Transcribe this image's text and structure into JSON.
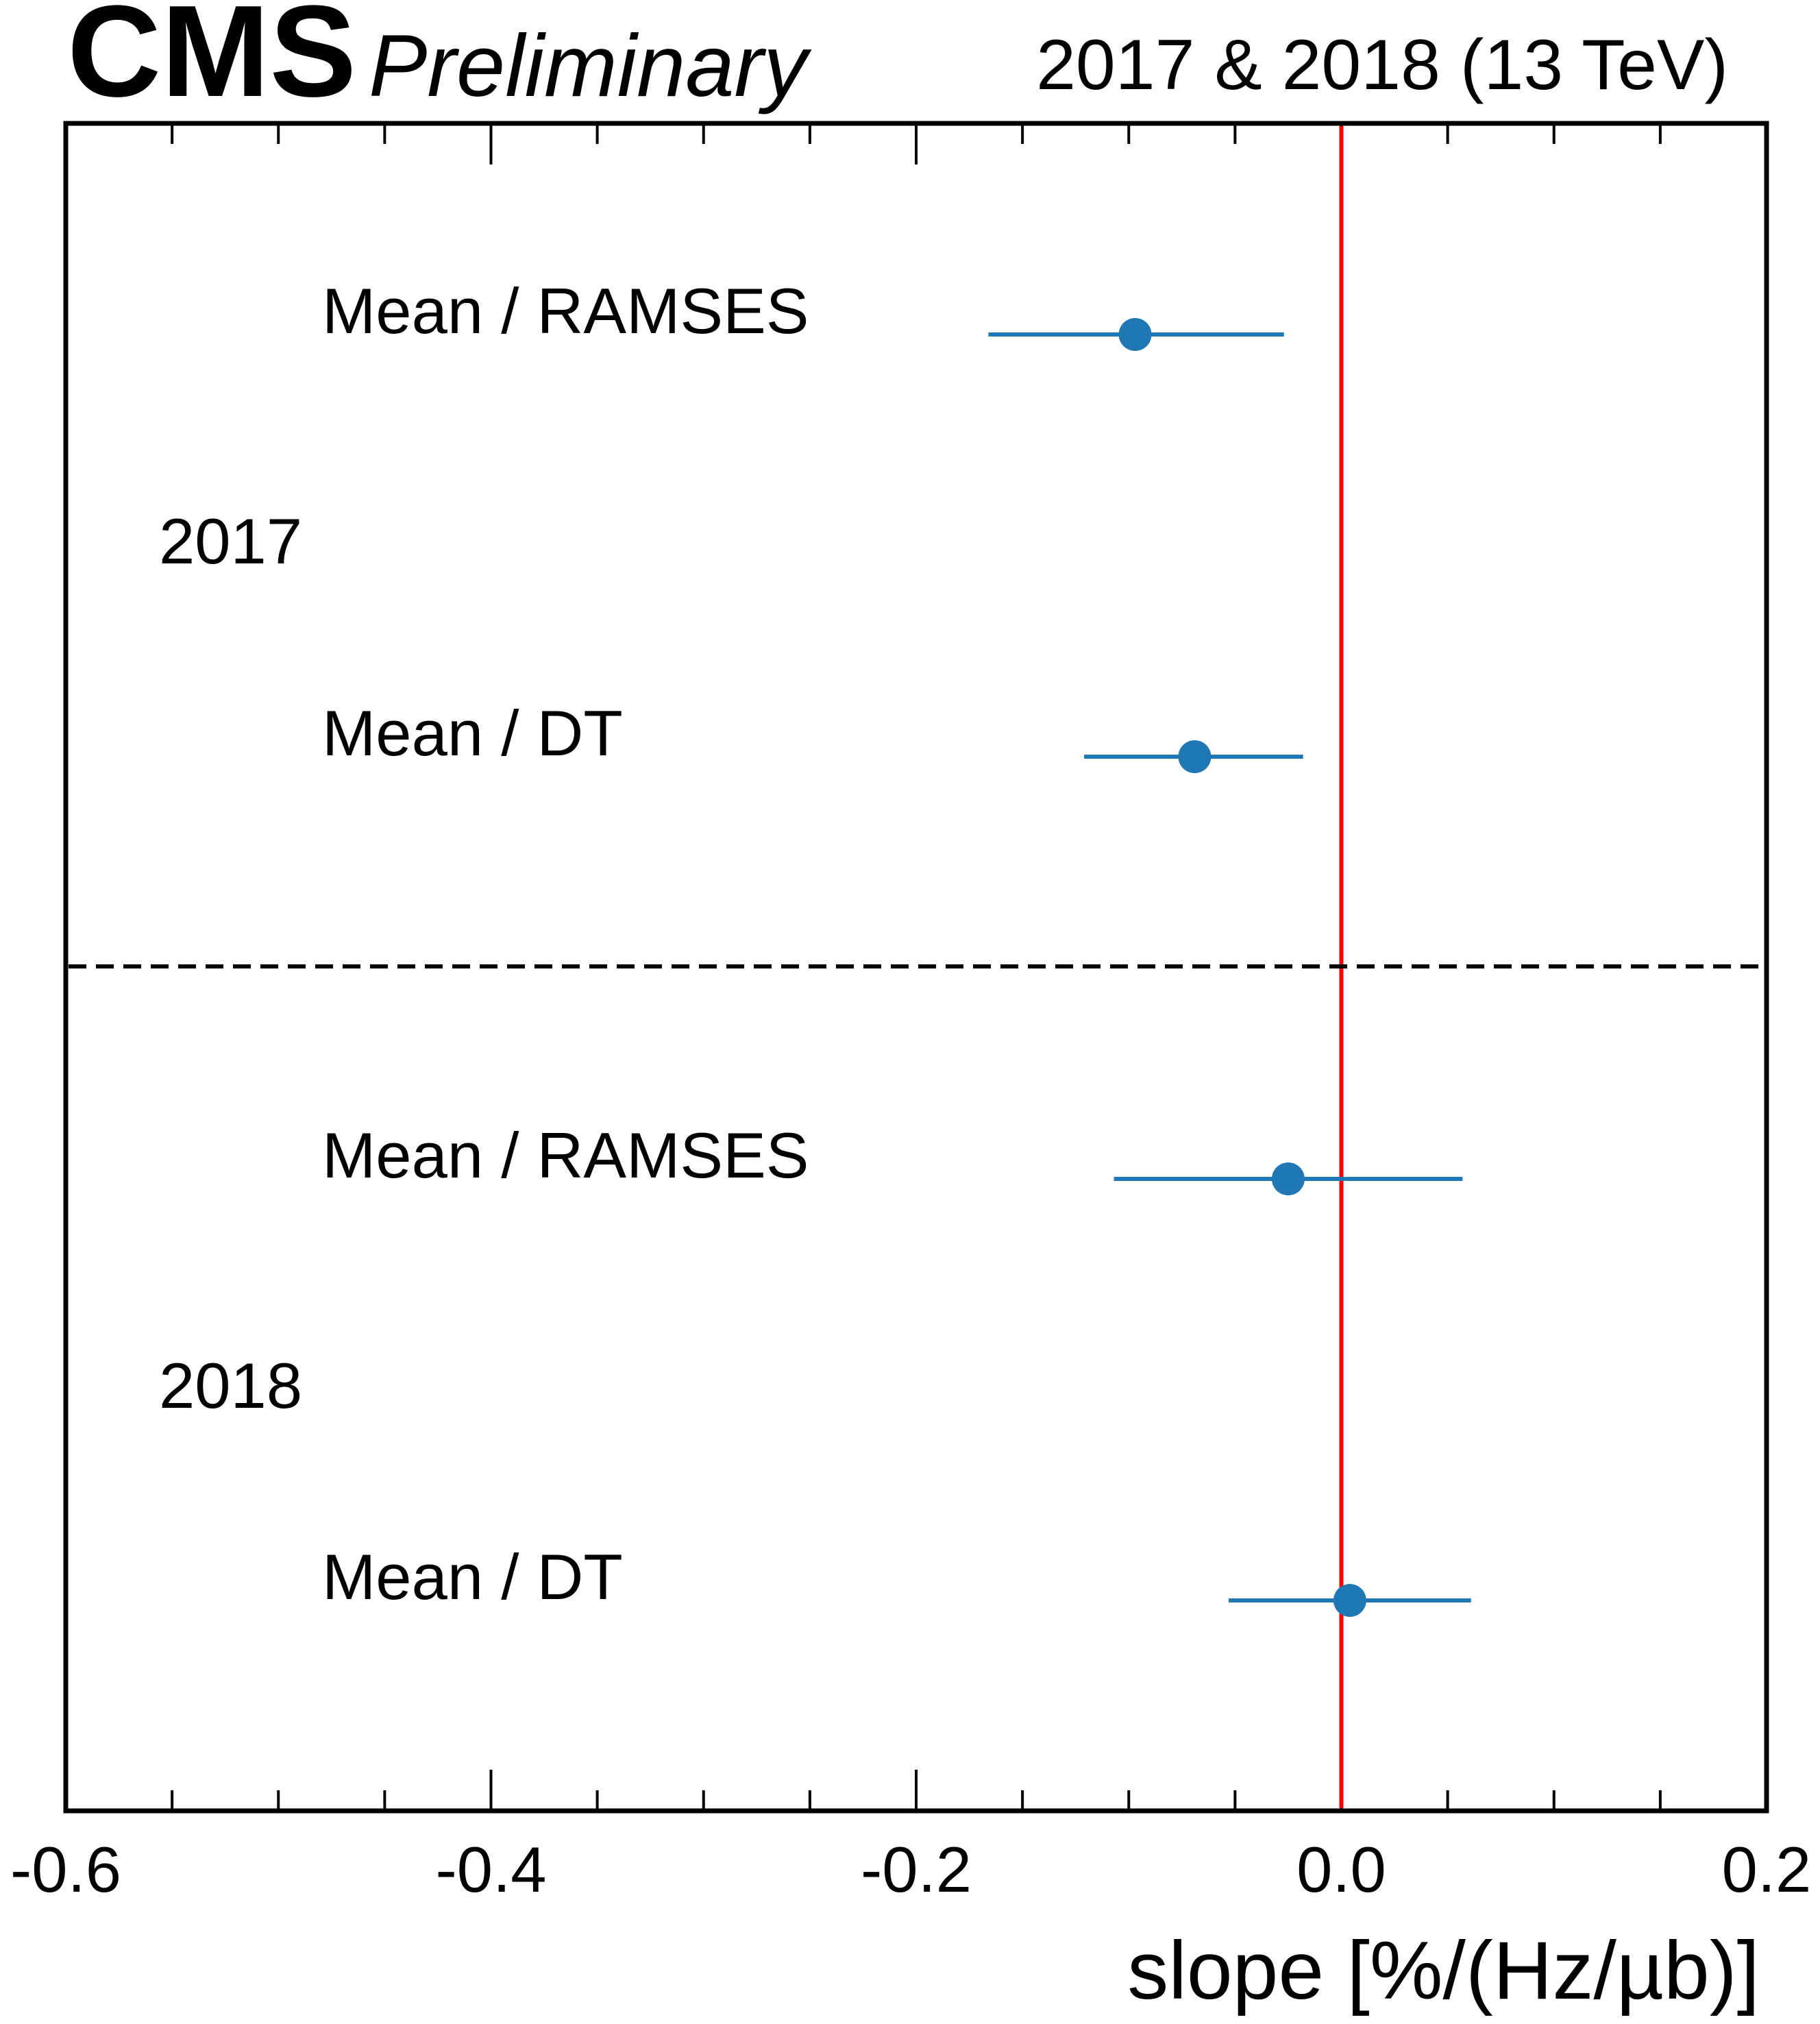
{
  "header": {
    "experiment": "CMS",
    "status": "Preliminary",
    "lumi_label": "2017 & 2018 (13 TeV)"
  },
  "chart_data": {
    "type": "scatter",
    "title": "",
    "xlabel": "slope [%/(Hz/µb)]",
    "ylabel": "",
    "xlim": [
      -0.6,
      0.2
    ],
    "x_ticks": [
      "-0.6",
      "-0.4",
      "-0.2",
      "0.0",
      "0.2"
    ],
    "reference_line": {
      "x": 0.0,
      "color": "#ff0000"
    },
    "groups": [
      {
        "label": "2017",
        "points": [
          {
            "label": "Mean / RAMSES",
            "value": -0.097,
            "err_low": 0.069,
            "err_high": 0.07
          },
          {
            "label": "Mean / DT",
            "value": -0.069,
            "err_low": 0.052,
            "err_high": 0.051
          }
        ]
      },
      {
        "label": "2018",
        "points": [
          {
            "label": "Mean / RAMSES",
            "value": -0.025,
            "err_low": 0.082,
            "err_high": 0.082
          },
          {
            "label": "Mean / DT",
            "value": 0.004,
            "err_low": 0.057,
            "err_high": 0.057
          }
        ]
      }
    ],
    "separator": "dashed",
    "marker_color": "#1f77b4",
    "legend": "none"
  }
}
